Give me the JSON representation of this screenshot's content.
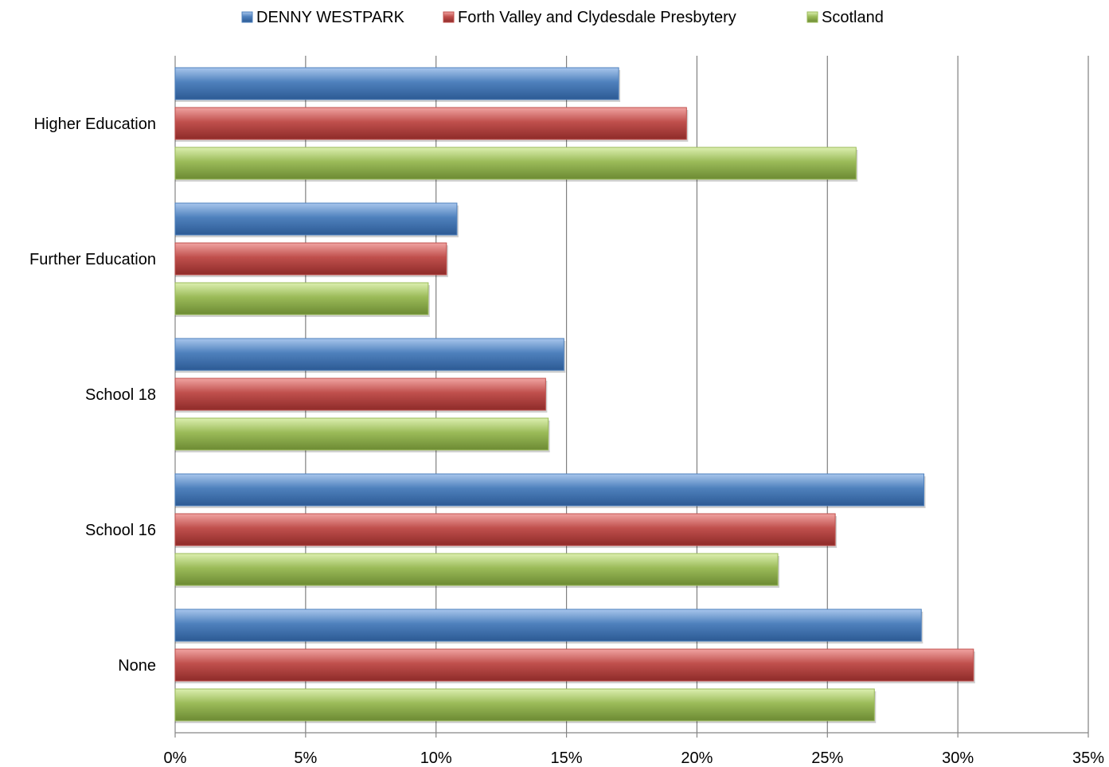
{
  "chart_data": {
    "type": "bar",
    "orientation": "horizontal",
    "categories": [
      "Higher Education",
      "Further Education",
      "School 18",
      "School 16",
      "None"
    ],
    "series": [
      {
        "name": "DENNY WESTPARK",
        "color": "#4f81bd",
        "values": [
          17.0,
          10.8,
          14.9,
          28.7,
          28.6
        ]
      },
      {
        "name": "Forth Valley and Clydesdale Presbytery",
        "color": "#c0504d",
        "values": [
          19.6,
          10.4,
          14.2,
          25.3,
          30.6
        ]
      },
      {
        "name": "Scotland",
        "color": "#9bbb59",
        "values": [
          26.1,
          9.7,
          14.3,
          23.1,
          26.8
        ]
      }
    ],
    "xlim": [
      0,
      35
    ],
    "x_ticks": [
      "0%",
      "5%",
      "10%",
      "15%",
      "20%",
      "25%",
      "30%",
      "35%"
    ],
    "grid": true,
    "legend_position": "top"
  }
}
